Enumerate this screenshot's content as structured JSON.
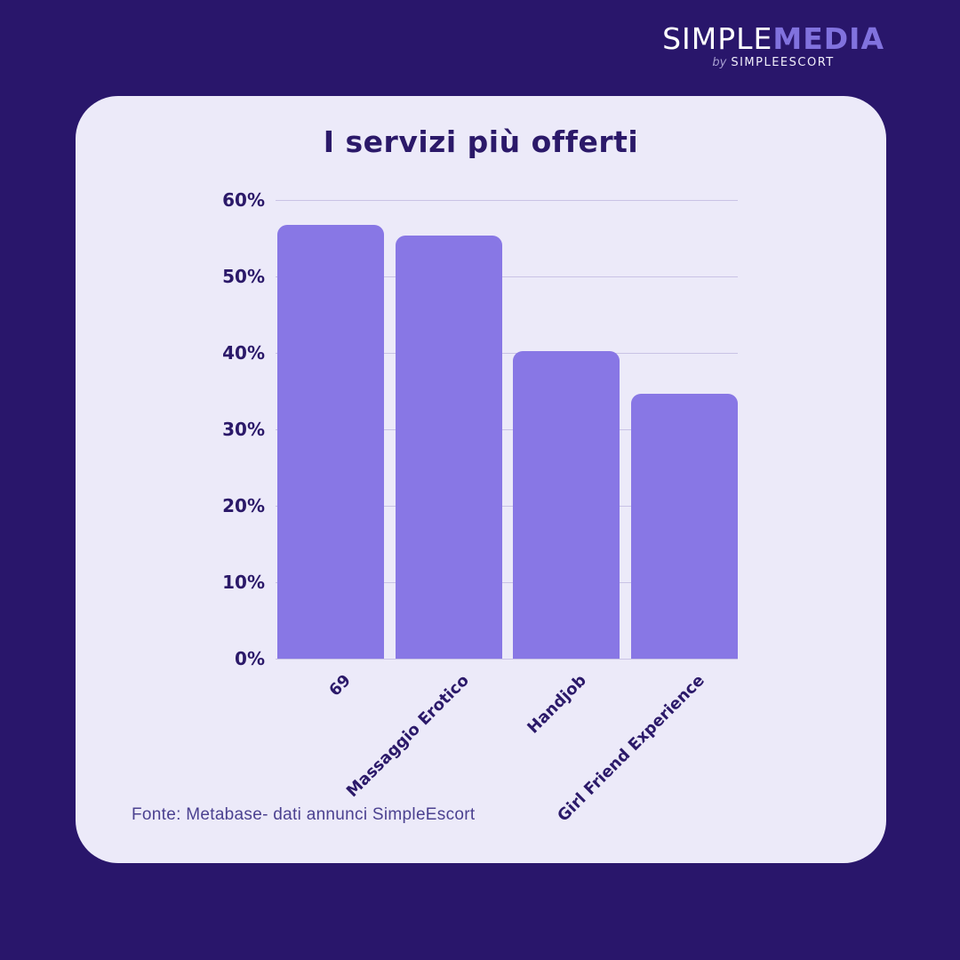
{
  "logo": {
    "part1": "SIMPLE",
    "part2": "MEDIA",
    "by": "by",
    "sub": "SIMPLEESCORT"
  },
  "card": {
    "source": "Fonte: Metabase- dati annunci SimpleEscort"
  },
  "chart_data": {
    "type": "bar",
    "title": "I servizi più offerti",
    "categories": [
      "69",
      "Massaggio Erotico",
      "Handjob",
      "Girl Friend Experience"
    ],
    "values": [
      56.7,
      55.3,
      40.2,
      34.6
    ],
    "xlabel": "",
    "ylabel": "",
    "ylim": [
      0,
      60
    ],
    "ytick_labels": [
      "0%",
      "10%",
      "20%",
      "30%",
      "40%",
      "50%",
      "60%"
    ],
    "grid": "horizontal",
    "legend": "none",
    "colors": {
      "background": "#29166B",
      "card": "#ECEAF9",
      "bar": "#8877E5",
      "text": "#2B1969",
      "gridline": "#C9C3E5",
      "source_text": "#4B4190",
      "logo_accent": "#8172DE"
    }
  }
}
